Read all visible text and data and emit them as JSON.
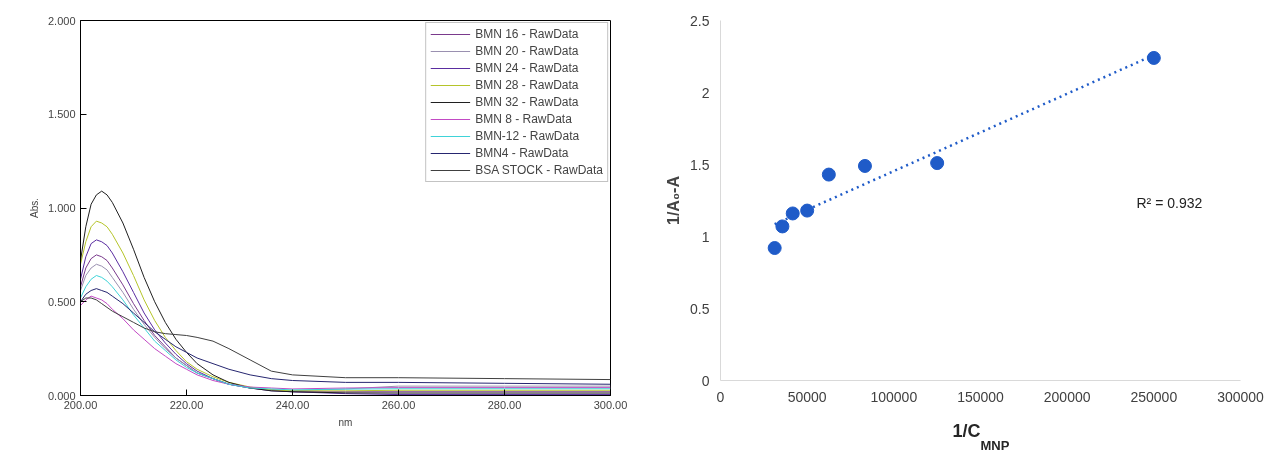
{
  "chart_data": [
    {
      "type": "line",
      "xlabel": "nm",
      "ylabel": "Abs.",
      "xlim": [
        200,
        300
      ],
      "ylim": [
        0,
        2
      ],
      "xticks": [
        {
          "value": 200,
          "label": "200.00"
        },
        {
          "value": 220,
          "label": "220.00"
        },
        {
          "value": 240,
          "label": "240.00"
        },
        {
          "value": 260,
          "label": "260.00"
        },
        {
          "value": 280,
          "label": "280.00"
        },
        {
          "value": 300,
          "label": "300.00"
        }
      ],
      "yticks": [
        {
          "value": 0,
          "label": "0.000"
        },
        {
          "value": 0.5,
          "label": "0.500"
        },
        {
          "value": 1,
          "label": "1.000"
        },
        {
          "value": 1.5,
          "label": "1.500"
        },
        {
          "value": 2,
          "label": "2.000"
        }
      ],
      "grid": false,
      "legend": "top right",
      "marker": "none",
      "line_style": "solid",
      "x": [
        200,
        201,
        202,
        203,
        204,
        205,
        206,
        208,
        210,
        212,
        214,
        216,
        218,
        220,
        222,
        225,
        228,
        232,
        236,
        240,
        250,
        260,
        280,
        300
      ],
      "series": [
        {
          "name": "BMN 16 - RawData",
          "color": "#7a3a8c",
          "values": [
            0.58,
            0.68,
            0.73,
            0.75,
            0.74,
            0.72,
            0.68,
            0.59,
            0.49,
            0.4,
            0.32,
            0.26,
            0.2,
            0.16,
            0.12,
            0.09,
            0.06,
            0.04,
            0.03,
            0.02,
            0.02,
            0.02,
            0.02,
            0.02
          ]
        },
        {
          "name": "BMN 20 - RawData",
          "color": "#9a90b0",
          "values": [
            0.56,
            0.64,
            0.68,
            0.7,
            0.69,
            0.67,
            0.63,
            0.55,
            0.46,
            0.38,
            0.31,
            0.25,
            0.2,
            0.16,
            0.12,
            0.09,
            0.06,
            0.04,
            0.03,
            0.025,
            0.035,
            0.05,
            0.05,
            0.05
          ]
        },
        {
          "name": "BMN 24 - RawData",
          "color": "#5a2da0",
          "values": [
            0.62,
            0.74,
            0.81,
            0.83,
            0.82,
            0.8,
            0.76,
            0.66,
            0.55,
            0.44,
            0.35,
            0.28,
            0.22,
            0.17,
            0.13,
            0.09,
            0.06,
            0.04,
            0.025,
            0.02,
            0.01,
            0.005,
            0.005,
            0.005
          ]
        },
        {
          "name": "BMN 28 - RawData",
          "color": "#b5c42a",
          "values": [
            0.7,
            0.82,
            0.9,
            0.93,
            0.92,
            0.9,
            0.86,
            0.76,
            0.64,
            0.51,
            0.4,
            0.31,
            0.24,
            0.18,
            0.14,
            0.1,
            0.07,
            0.045,
            0.03,
            0.025,
            0.025,
            0.028,
            0.028,
            0.028
          ]
        },
        {
          "name": "BMN 32 - RawData",
          "color": "#202020",
          "values": [
            0.72,
            0.9,
            1.02,
            1.07,
            1.09,
            1.07,
            1.03,
            0.92,
            0.78,
            0.63,
            0.5,
            0.39,
            0.3,
            0.23,
            0.17,
            0.11,
            0.07,
            0.04,
            0.025,
            0.02,
            0.014,
            0.013,
            0.013,
            0.013
          ]
        },
        {
          "name": "BMN 8 - RawData",
          "color": "#c24ac4",
          "values": [
            0.48,
            0.51,
            0.53,
            0.52,
            0.51,
            0.49,
            0.46,
            0.41,
            0.35,
            0.3,
            0.25,
            0.21,
            0.17,
            0.14,
            0.11,
            0.08,
            0.06,
            0.045,
            0.04,
            0.035,
            0.04,
            0.042,
            0.042,
            0.042
          ]
        },
        {
          "name": "BMN-12 - RawData",
          "color": "#3fd3d8",
          "values": [
            0.52,
            0.58,
            0.62,
            0.64,
            0.63,
            0.61,
            0.58,
            0.51,
            0.43,
            0.36,
            0.29,
            0.24,
            0.19,
            0.15,
            0.12,
            0.09,
            0.06,
            0.04,
            0.035,
            0.03,
            0.034,
            0.036,
            0.036,
            0.036
          ]
        },
        {
          "name": "BMN4 - RawData",
          "color": "#262670",
          "values": [
            0.5,
            0.54,
            0.56,
            0.57,
            0.56,
            0.55,
            0.53,
            0.49,
            0.44,
            0.39,
            0.34,
            0.3,
            0.26,
            0.23,
            0.2,
            0.17,
            0.14,
            0.11,
            0.09,
            0.08,
            0.07,
            0.07,
            0.065,
            0.06
          ]
        },
        {
          "name": "BSA STOCK - RawData",
          "color": "#404040",
          "values": [
            0.5,
            0.52,
            0.52,
            0.51,
            0.49,
            0.47,
            0.45,
            0.42,
            0.39,
            0.36,
            0.34,
            0.33,
            0.325,
            0.32,
            0.31,
            0.29,
            0.25,
            0.19,
            0.13,
            0.11,
            0.095,
            0.095,
            0.09,
            0.085
          ]
        }
      ]
    },
    {
      "type": "scatter",
      "xlabel": "1/C$_{MNP}$",
      "ylabel": "1/A₀-A",
      "xlim": [
        0,
        300000
      ],
      "ylim": [
        0,
        2.5
      ],
      "xticks": [
        0,
        50000,
        100000,
        150000,
        200000,
        250000,
        300000
      ],
      "yticks": [
        0,
        0.5,
        1,
        1.5,
        2,
        2.5
      ],
      "grid": false,
      "legend": false,
      "marker": "circle",
      "annotations": [
        "R² = 0.932"
      ],
      "series": [
        {
          "type": "scatter",
          "color": "#1f5bc8",
          "x": [
            31250,
            35714,
            41667,
            50000,
            62500,
            83333,
            125000,
            250000
          ],
          "values": [
            0.92,
            1.07,
            1.16,
            1.18,
            1.43,
            1.49,
            1.51,
            2.24
          ]
        },
        {
          "type": "line",
          "color": "#1f5bc8",
          "line_style": "dotted",
          "marker": "none",
          "x": [
            31250,
            250000
          ],
          "values": [
            1.085,
            2.26
          ]
        }
      ]
    }
  ]
}
